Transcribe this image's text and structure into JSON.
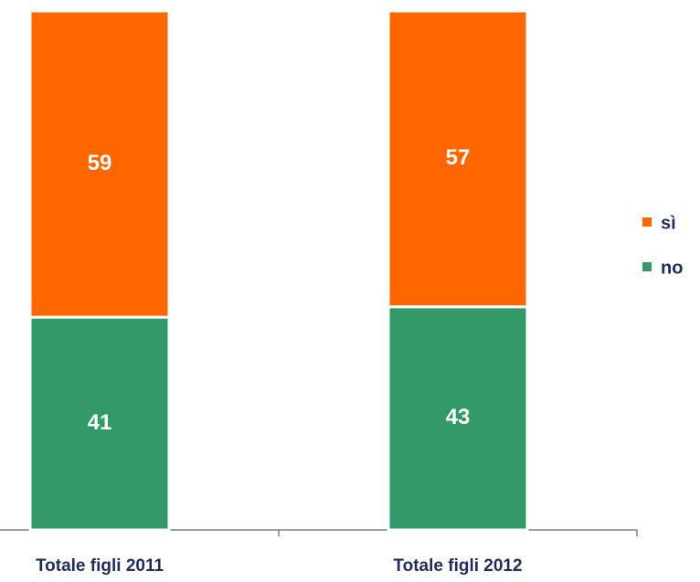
{
  "chart_data": {
    "type": "stacked_bar",
    "categories": [
      "Totale figli 2011",
      "Totale figli 2012"
    ],
    "series": [
      {
        "name": "no",
        "color": "#339966",
        "values": [
          41,
          43
        ]
      },
      {
        "name": "sì",
        "color": "#ff6600",
        "values": [
          59,
          57
        ]
      }
    ],
    "ylim": [
      0,
      100
    ],
    "legend": "right"
  }
}
